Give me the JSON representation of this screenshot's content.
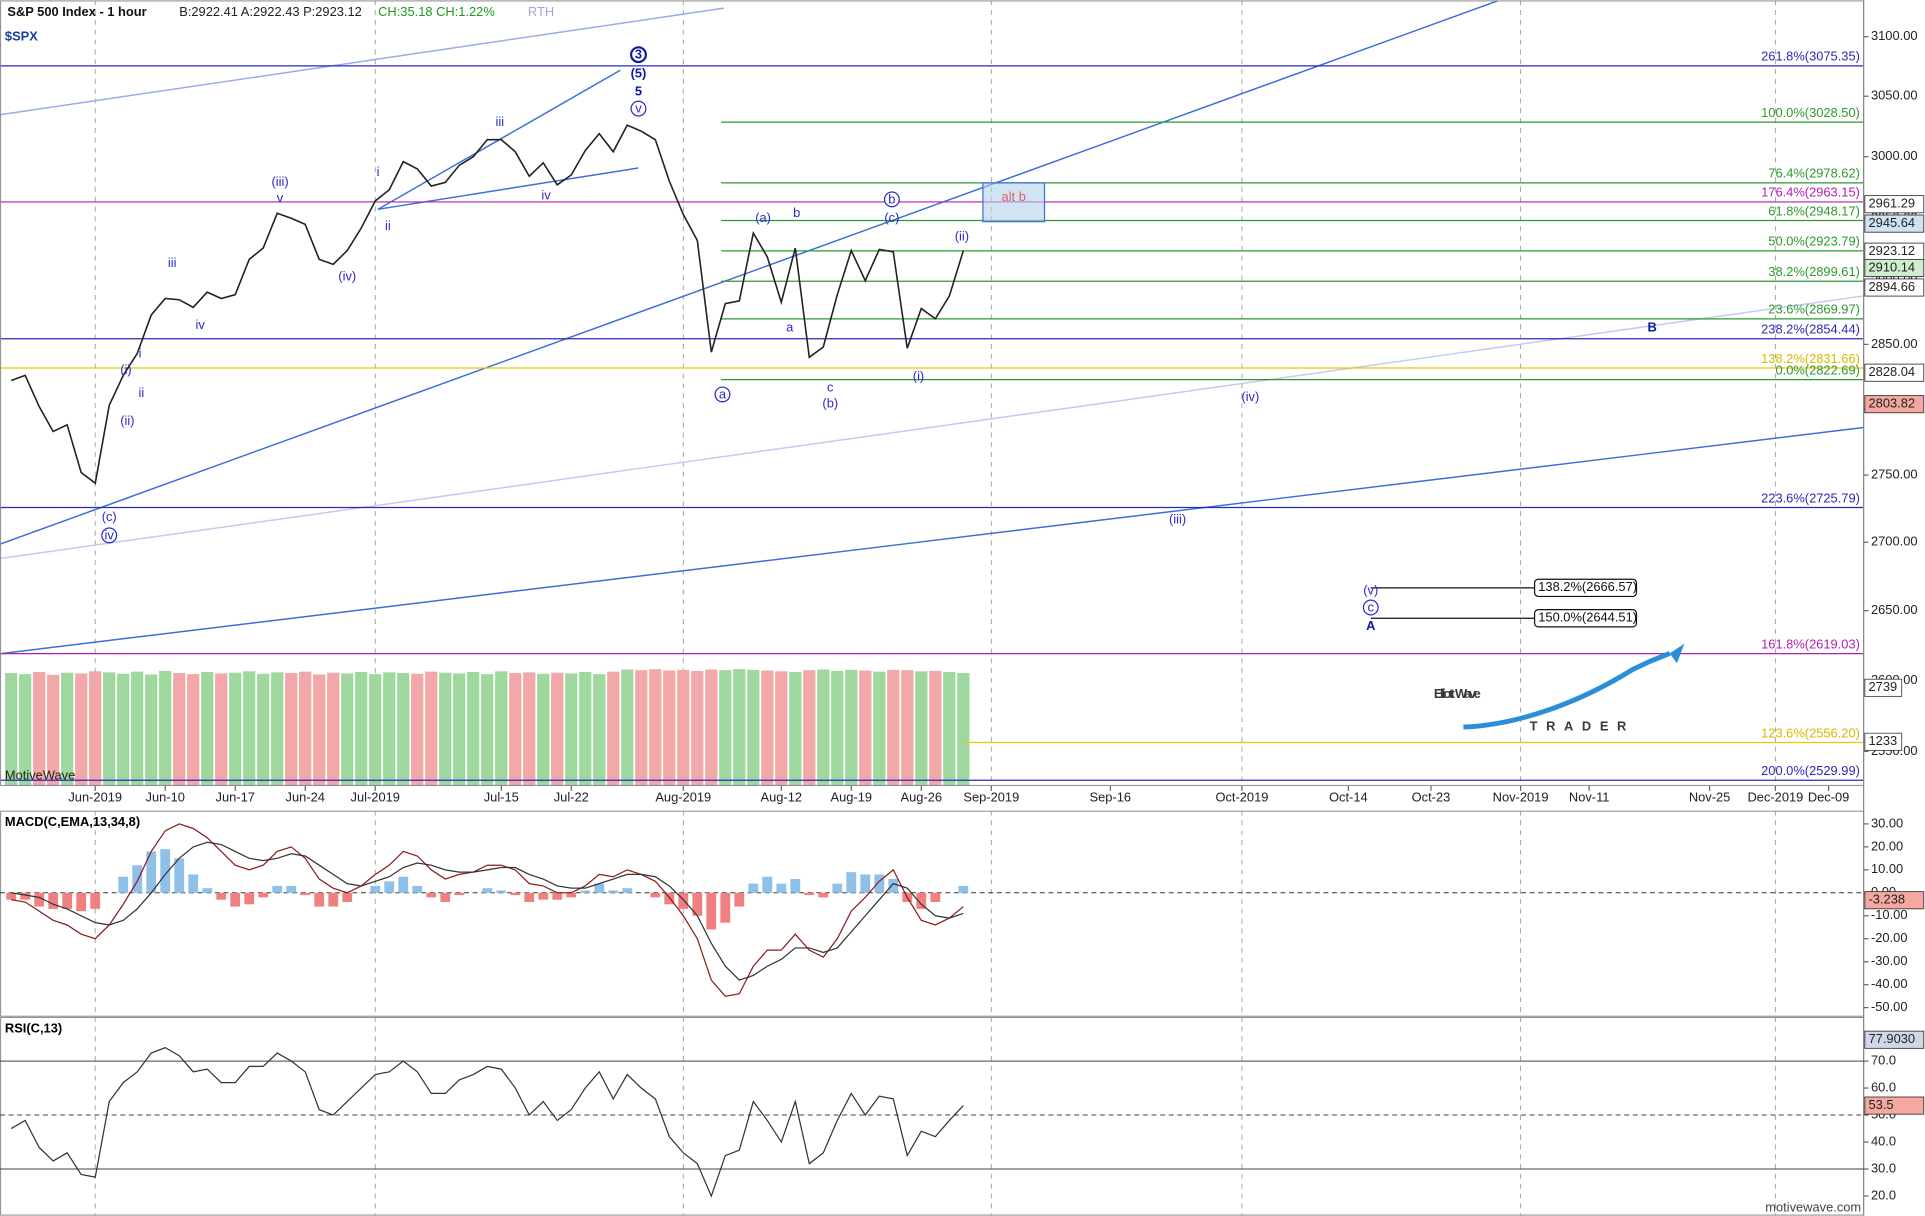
{
  "chart_data": {
    "type": "line",
    "title": "S&P 500 Index - 1 hour",
    "quote": "B:2922.41 A:2922.43 P:2923.12",
    "change": "CH:35.18 CH:1.22%",
    "session": "RTH",
    "symbol": "$SPX",
    "watermark": "MotiveWave",
    "credit": "motivewave.com",
    "log_scale": true,
    "color": "#222222",
    "x": [
      -6,
      -5,
      -4,
      -3,
      -2,
      -1,
      0,
      1,
      2,
      3,
      4,
      5,
      6,
      7,
      8,
      9,
      10,
      11,
      12,
      13,
      14,
      15,
      16,
      17,
      18,
      19,
      20,
      21,
      22,
      23,
      24,
      25,
      26,
      27,
      28,
      29,
      30,
      31,
      32,
      33,
      34,
      35,
      36,
      37,
      38,
      39,
      40,
      41,
      42,
      43,
      44,
      45,
      46,
      47,
      48,
      49,
      50,
      51,
      52,
      53,
      54,
      55,
      56,
      57,
      58,
      59,
      60,
      61,
      62
    ],
    "values": [
      2822,
      2826,
      2802,
      2783,
      2788,
      2752,
      2744,
      2803,
      2826,
      2843,
      2873,
      2886,
      2885,
      2879,
      2891,
      2886,
      2889,
      2917,
      2926,
      2954,
      2950,
      2945,
      2917,
      2913,
      2924,
      2942,
      2964,
      2973,
      2996,
      2990,
      2976,
      2979,
      2993,
      3000,
      3014,
      3014,
      3004,
      2984,
      2995,
      2977,
      2985,
      3005,
      3019,
      3004,
      3026,
      3021,
      3014,
      2980,
      2953,
      2932,
      2844,
      2882,
      2884,
      2938,
      2919,
      2883,
      2926,
      2840,
      2848,
      2889,
      2924,
      2900,
      2925,
      2923,
      2847,
      2878,
      2870,
      2888,
      2924
    ],
    "xlim": [
      -6.8,
      126.3
    ],
    "xticks": [
      {
        "value": 0,
        "label": "Jun-2019"
      },
      {
        "value": 5,
        "label": "Jun-10"
      },
      {
        "value": 10,
        "label": "Jun-17"
      },
      {
        "value": 15,
        "label": "Jun-24"
      },
      {
        "value": 20,
        "label": "Jul-2019"
      },
      {
        "value": 29,
        "label": "Jul-15"
      },
      {
        "value": 34,
        "label": "Jul-22"
      },
      {
        "value": 42,
        "label": "Aug-2019"
      },
      {
        "value": 49,
        "label": "Aug-12"
      },
      {
        "value": 54,
        "label": "Aug-19"
      },
      {
        "value": 59,
        "label": "Aug-26"
      },
      {
        "value": 64,
        "label": "Sep-2019"
      },
      {
        "value": 72.5,
        "label": "Sep-16"
      },
      {
        "value": 81.9,
        "label": "Oct-2019"
      },
      {
        "value": 89.5,
        "label": "Oct-14"
      },
      {
        "value": 95.4,
        "label": "Oct-23"
      },
      {
        "value": 101.8,
        "label": "Nov-2019"
      },
      {
        "value": 106.7,
        "label": "Nov-11"
      },
      {
        "value": 115.3,
        "label": "Nov-25"
      },
      {
        "value": 120,
        "label": "Dec-2019"
      },
      {
        "value": 123.8,
        "label": "Dec-09"
      }
    ],
    "ylim": [
      2526,
      3131
    ],
    "yticks": [
      {
        "value": 2550,
        "label": "2550.00"
      },
      {
        "value": 2600,
        "label": "2600.00"
      },
      {
        "value": 2650,
        "label": "2650.00"
      },
      {
        "value": 2700,
        "label": "2700.00"
      },
      {
        "value": 2750,
        "label": "2750.00"
      },
      {
        "value": 2800,
        "label": "2800.00"
      },
      {
        "value": 2850,
        "label": "2850.00"
      },
      {
        "value": 2900,
        "label": "2900.00"
      },
      {
        "value": 2950,
        "label": "2950.00"
      },
      {
        "value": 3000,
        "label": "3000.00"
      },
      {
        "value": 3050,
        "label": "3050.00"
      },
      {
        "value": 3100,
        "label": "3100.00"
      }
    ],
    "levels": [
      {
        "label": "261.8%(3075.35)",
        "value": 3075.35,
        "color": "#2a2ab8"
      },
      {
        "label": "100.0%(3028.50)",
        "value": 3028.5,
        "color": "#2e9a2e",
        "x_start": 44.7
      },
      {
        "label": "76.4%(2978.62)",
        "value": 2978.62,
        "color": "#2e9a2e",
        "x_start": 44.7
      },
      {
        "label": "176.4%(2963.15)",
        "value": 2963.15,
        "color": "#b01fb0"
      },
      {
        "label": "61.8%(2948.17)",
        "value": 2948.17,
        "color": "#2e9a2e",
        "x_start": 44.7
      },
      {
        "label": "50.0%(2923.79)",
        "value": 2923.79,
        "color": "#2e9a2e",
        "x_start": 44.7
      },
      {
        "label": "38.2%(2899.61)",
        "value": 2899.61,
        "color": "#2e9a2e",
        "x_start": 44.7
      },
      {
        "label": "23.6%(2869.97)",
        "value": 2869.97,
        "color": "#2e9a2e",
        "x_start": 44.7
      },
      {
        "label": "238.2%(2854.44)",
        "value": 2854.44,
        "color": "#2a2ab8"
      },
      {
        "label": "138.2%(2831.66)",
        "value": 2831.66,
        "color": "#e8c800"
      },
      {
        "label": "0.0%(2822.69)",
        "value": 2822.69,
        "color": "#2e9a2e",
        "x_start": 44.7
      },
      {
        "label": "223.6%(2725.79)",
        "value": 2725.79,
        "color": "#2a2ab8"
      },
      {
        "label": "161.8%(2619.03)",
        "value": 2619.03,
        "color": "#b01fb0"
      },
      {
        "label": "123.6%(2556.20)",
        "value": 2556.2,
        "color": "#e8c800",
        "x_start": 62
      },
      {
        "label": "200.0%(2529.99)",
        "value": 2529.99,
        "color": "#2a2ab8"
      }
    ],
    "price_markers": [
      {
        "value": 2961.29,
        "fill": "#ffffff"
      },
      {
        "value": 2945.64,
        "fill": "#cfe3f5"
      },
      {
        "value": 2923.12,
        "fill": "#ffffff"
      },
      {
        "value": 2910.14,
        "fill": "#cfeecf"
      },
      {
        "value": 2894.66,
        "fill": "#ffffff"
      },
      {
        "value": 2828.04,
        "fill": "#ffffff"
      },
      {
        "value": 2803.82,
        "fill": "#f4a8a0"
      }
    ],
    "trendlines": [
      {
        "x": [
          -6.8,
          100.2
        ],
        "y": [
          2698.6,
          3130.7
        ],
        "color": "#3a6fd8"
      },
      {
        "x": [
          -6.8,
          126.3
        ],
        "y": [
          2619,
          2786
        ],
        "color": "#3a6fd8"
      },
      {
        "x": [
          -6.8,
          44.9
        ],
        "y": [
          3034.6,
          3124.3
        ],
        "color": "#9aaae8"
      },
      {
        "x": [
          20.2,
          37.5
        ],
        "y": [
          2957.2,
          3071.7
        ],
        "color": "#3a6fd8"
      },
      {
        "x": [
          20.2,
          38.8
        ],
        "y": [
          2957.2,
          2990.8
        ],
        "color": "#3a6fd8"
      },
      {
        "x": [
          -6.8,
          126.3
        ],
        "y": [
          2688,
          2888
        ],
        "color": "#c8c8f0"
      }
    ],
    "boxes": [
      {
        "label": "alt b",
        "x": [
          63.4,
          67.8
        ],
        "y": [
          2947.2,
          2978.6
        ]
      }
    ],
    "projections": [
      {
        "label": "138.2%(2666.57)",
        "value": 2666.57,
        "x_start": 91.1,
        "x_end": 102.8
      },
      {
        "label": "150.0%(2644.51)",
        "value": 2644.51,
        "x_start": 91.1,
        "x_end": 102.8
      }
    ],
    "wave_labels": [
      {
        "text": "3",
        "x": 38.8,
        "y": 3084.8,
        "circled": true,
        "bold": true
      },
      {
        "text": "(5)",
        "x": 38.8,
        "y": 3069.2,
        "bold": true
      },
      {
        "text": "5",
        "x": 38.8,
        "y": 3053.9,
        "bold": true
      },
      {
        "text": "v",
        "x": 38.8,
        "y": 3039.7,
        "circled": true
      },
      {
        "text": "iii",
        "x": 28.9,
        "y": 3028.5
      },
      {
        "text": "i",
        "x": 20.2,
        "y": 2987.3
      },
      {
        "text": "ii",
        "x": 20.9,
        "y": 2943.9
      },
      {
        "text": "(iii)",
        "x": 13.2,
        "y": 2979.2
      },
      {
        "text": "v",
        "x": 13.2,
        "y": 2966.2
      },
      {
        "text": "(iv)",
        "x": 18.0,
        "y": 2903.3
      },
      {
        "text": "iv",
        "x": 32.2,
        "y": 2968.2
      },
      {
        "text": "iii",
        "x": 5.5,
        "y": 2914.2
      },
      {
        "text": "iv",
        "x": 7.5,
        "y": 2865.3
      },
      {
        "text": "i",
        "x": 3.2,
        "y": 2842.9
      },
      {
        "text": "(i)",
        "x": 2.2,
        "y": 2830.3
      },
      {
        "text": "ii",
        "x": 3.3,
        "y": 2812.3
      },
      {
        "text": "(ii)",
        "x": 2.3,
        "y": 2790.8
      },
      {
        "text": "(c)",
        "x": 1.0,
        "y": 2718.6
      },
      {
        "text": "iv",
        "x": 1.0,
        "y": 2705.1,
        "circled": true
      },
      {
        "text": "(a)",
        "x": 47.7,
        "y": 2950.2
      },
      {
        "text": "b",
        "x": 50.1,
        "y": 2954.2
      },
      {
        "text": "a",
        "x": 49.6,
        "y": 2863.4
      },
      {
        "text": "c",
        "x": 52.5,
        "y": 2816.8
      },
      {
        "text": "(b)",
        "x": 52.5,
        "y": 2804.5
      },
      {
        "text": "a",
        "x": 44.8,
        "y": 2811.3,
        "circled": true
      },
      {
        "text": "b",
        "x": 56.9,
        "y": 2965.2,
        "circled": true
      },
      {
        "text": "(c)",
        "x": 56.9,
        "y": 2950.2
      },
      {
        "text": "(ii)",
        "x": 61.9,
        "y": 2935.4
      },
      {
        "text": "(i)",
        "x": 58.8,
        "y": 2825.3
      },
      {
        "text": "B",
        "x": 111.2,
        "y": 2863.4,
        "bold": true
      },
      {
        "text": "(iv)",
        "x": 82.5,
        "y": 2809.5
      },
      {
        "text": "(iii)",
        "x": 77.3,
        "y": 2716.8
      },
      {
        "text": "(v)",
        "x": 91.1,
        "y": 2664.7
      },
      {
        "text": "c",
        "x": 91.1,
        "y": 2652.3,
        "circled": true
      },
      {
        "text": "A",
        "x": 91.1,
        "y": 2639.0,
        "bold": true
      }
    ],
    "volume": {
      "ylim": [
        0,
        3424
      ],
      "values": [
        3150,
        3120,
        3180,
        3100,
        3160,
        3140,
        3200,
        3170,
        3130,
        3190,
        3110,
        3210,
        3150,
        3120,
        3180,
        3140,
        3160,
        3200,
        3130,
        3170,
        3150,
        3190,
        3110,
        3160,
        3140,
        3180,
        3120,
        3170,
        3150,
        3130,
        3190,
        3160,
        3140,
        3180,
        3120,
        3200,
        3150,
        3170,
        3130,
        3160,
        3140,
        3180,
        3120,
        3190,
        3250,
        3230,
        3260,
        3220,
        3240,
        3210,
        3250,
        3230,
        3260,
        3240,
        3220,
        3200,
        3180,
        3230,
        3250,
        3210,
        3240,
        3220,
        3190,
        3240,
        3230,
        3200,
        3210,
        3180,
        3150
      ],
      "markers": [
        2739,
        1233
      ]
    },
    "macd": {
      "title": "MACD(C,EMA,13,34,8)",
      "ylim": [
        -54,
        35.8
      ],
      "yticks": [
        {
          "value": 30,
          "label": "30.00"
        },
        {
          "value": 20,
          "label": "20.00"
        },
        {
          "value": 10,
          "label": "10.00"
        },
        {
          "value": 0,
          "label": "0.00"
        },
        {
          "value": -10,
          "label": "-10.00"
        },
        {
          "value": -20,
          "label": "-20.00"
        },
        {
          "value": -30,
          "label": "-30.00"
        },
        {
          "value": -40,
          "label": "-40.00"
        },
        {
          "value": -50,
          "label": "-50.00"
        }
      ],
      "macd": [
        -3,
        -4,
        -8,
        -12,
        -14,
        -18,
        -20,
        -14,
        -5,
        5,
        18,
        27,
        30,
        28,
        24,
        18,
        12,
        10,
        12,
        18,
        20,
        15,
        6,
        2,
        0,
        3,
        8,
        12,
        18,
        16,
        10,
        6,
        8,
        9,
        12,
        12,
        10,
        4,
        3,
        0,
        0,
        3,
        8,
        7,
        10,
        8,
        5,
        -2,
        -10,
        -20,
        -38,
        -45,
        -44,
        -32,
        -25,
        -25,
        -18,
        -25,
        -28,
        -20,
        -8,
        -2,
        5,
        10,
        -2,
        -12,
        -14,
        -11,
        -6
      ],
      "signal": [
        0,
        -1,
        -2,
        -5,
        -7,
        -10,
        -13,
        -14,
        -12,
        -7,
        0,
        8,
        15,
        20,
        22,
        21,
        18,
        15,
        14,
        15,
        17,
        16,
        12,
        8,
        4,
        3,
        5,
        7,
        11,
        13,
        12,
        10,
        9,
        9,
        10,
        11,
        11,
        8,
        6,
        3,
        2,
        2,
        4,
        6,
        8,
        8,
        7,
        3,
        -3,
        -10,
        -22,
        -32,
        -38,
        -36,
        -32,
        -29,
        -24,
        -24,
        -26,
        -24,
        -17,
        -10,
        -3,
        4,
        2,
        -5,
        -10,
        -11,
        -9
      ],
      "histogram": [
        -3,
        -3,
        -6,
        -7,
        -7,
        -8,
        -7,
        0,
        7,
        12,
        18,
        19,
        15,
        8,
        2,
        -3,
        -6,
        -5,
        -2,
        3,
        3,
        -1,
        -6,
        -6,
        -4,
        0,
        3,
        5,
        7,
        3,
        -2,
        -4,
        -1,
        0,
        2,
        1,
        -1,
        -4,
        -3,
        -3,
        -2,
        1,
        4,
        1,
        2,
        0,
        -2,
        -5,
        -7,
        -10,
        -16,
        -13,
        -6,
        4,
        7,
        4,
        6,
        -1,
        -2,
        4,
        9,
        8,
        8,
        6,
        -4,
        -7,
        -4,
        0,
        3
      ],
      "marker": -3.238
    },
    "rsi": {
      "title": "RSI(C,13)",
      "ylim": [
        12.7,
        86.4
      ],
      "yticks": [
        {
          "value": 20,
          "label": "20.0"
        },
        {
          "value": 30,
          "label": "30.0"
        },
        {
          "value": 40,
          "label": "40.0"
        },
        {
          "value": 50,
          "label": "50.0"
        },
        {
          "value": 60,
          "label": "60.0"
        },
        {
          "value": 70,
          "label": "70.0"
        }
      ],
      "levels": [
        70,
        30
      ],
      "midline": 50,
      "values": [
        45,
        48,
        38,
        33,
        36,
        28,
        27,
        55,
        62,
        66,
        73,
        75,
        72,
        66,
        67,
        62,
        62,
        68,
        68,
        73,
        70,
        66,
        52,
        50,
        55,
        60,
        65,
        66,
        70,
        66,
        58,
        58,
        63,
        65,
        68,
        67,
        60,
        50,
        55,
        48,
        52,
        60,
        66,
        56,
        65,
        60,
        56,
        42,
        36,
        32,
        20,
        35,
        37,
        55,
        48,
        40,
        55,
        32,
        36,
        48,
        58,
        50,
        57,
        56,
        35,
        44,
        42,
        48,
        53.5
      ],
      "markers": [
        {
          "value": 77.903,
          "label": "77.9030",
          "fill": "#d0d8e8"
        },
        {
          "value": 53.5,
          "fill": "#f4a8a0"
        }
      ]
    }
  },
  "logo": {
    "part1": "Elliott",
    "part2": "Wave",
    "tagline": "TRADER"
  }
}
